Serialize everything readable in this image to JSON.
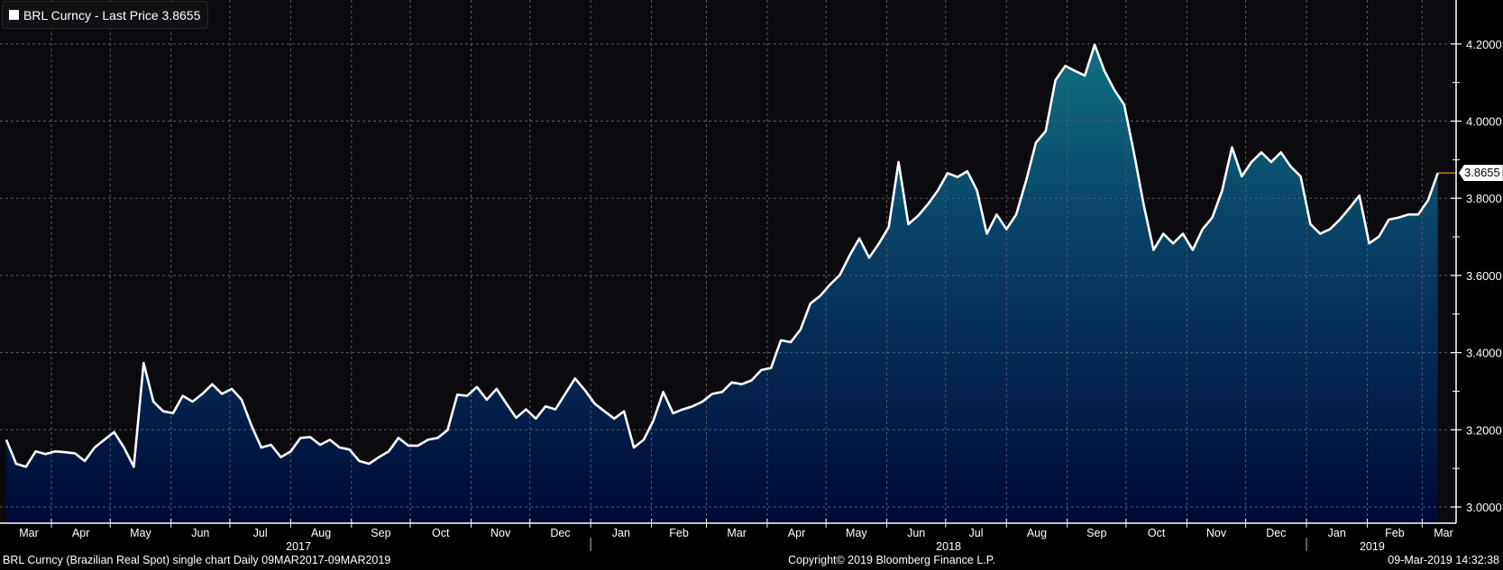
{
  "chart_data": {
    "type": "area",
    "title": "BRL Curncy (Brazilian Real Spot) single chart",
    "frequency": "Daily",
    "range_label": "09MAR2017-09MAR2019",
    "start_date": "2017-03-09",
    "end_date": "2019-03-09",
    "series": [
      {
        "name": "BRL Curncy - Last Price 3.8655",
        "last_value": "3.8655",
        "values": [
          3.174,
          3.112,
          3.104,
          3.144,
          3.137,
          3.144,
          3.142,
          3.139,
          3.119,
          3.154,
          3.174,
          3.194,
          3.154,
          3.104,
          3.373,
          3.273,
          3.248,
          3.243,
          3.288,
          3.273,
          3.293,
          3.318,
          3.293,
          3.306,
          3.278,
          3.211,
          3.154,
          3.161,
          3.129,
          3.144,
          3.179,
          3.181,
          3.161,
          3.174,
          3.154,
          3.149,
          3.119,
          3.112,
          3.129,
          3.144,
          3.179,
          3.159,
          3.159,
          3.174,
          3.179,
          3.199,
          3.291,
          3.288,
          3.311,
          3.278,
          3.306,
          3.268,
          3.231,
          3.253,
          3.229,
          3.261,
          3.253,
          3.293,
          3.333,
          3.303,
          3.268,
          3.248,
          3.229,
          3.248,
          3.154,
          3.174,
          3.224,
          3.298,
          3.243,
          3.253,
          3.261,
          3.273,
          3.293,
          3.298,
          3.323,
          3.318,
          3.328,
          3.355,
          3.36,
          3.432,
          3.427,
          3.46,
          3.527,
          3.547,
          3.576,
          3.601,
          3.651,
          3.696,
          3.646,
          3.683,
          3.725,
          3.894,
          3.733,
          3.755,
          3.785,
          3.82,
          3.865,
          3.855,
          3.87,
          3.82,
          3.708,
          3.758,
          3.72,
          3.758,
          3.845,
          3.944,
          3.974,
          4.106,
          4.143,
          4.13,
          4.118,
          4.198,
          4.13,
          4.081,
          4.043,
          3.919,
          3.783,
          3.666,
          3.708,
          3.683,
          3.708,
          3.666,
          3.72,
          3.75,
          3.82,
          3.932,
          3.857,
          3.894,
          3.919,
          3.894,
          3.919,
          3.882,
          3.857,
          3.733,
          3.708,
          3.72,
          3.745,
          3.775,
          3.807,
          3.683,
          3.701,
          3.745,
          3.75,
          3.758,
          3.758,
          3.795,
          3.8655
        ]
      }
    ],
    "ylim": [
      3.0,
      4.3
    ],
    "y_ticks": [
      "3.0000",
      "3.2000",
      "3.4000",
      "3.6000",
      "3.8000",
      "4.0000",
      "4.2000"
    ],
    "months": [
      {
        "label": "Mar",
        "start": "2017-03-01"
      },
      {
        "label": "Apr",
        "start": "2017-04-01"
      },
      {
        "label": "May",
        "start": "2017-05-01"
      },
      {
        "label": "Jun",
        "start": "2017-06-01"
      },
      {
        "label": "Jul",
        "start": "2017-07-01"
      },
      {
        "label": "Aug",
        "start": "2017-08-01"
      },
      {
        "label": "Sep",
        "start": "2017-09-01"
      },
      {
        "label": "Oct",
        "start": "2017-10-01"
      },
      {
        "label": "Nov",
        "start": "2017-11-01"
      },
      {
        "label": "Dec",
        "start": "2017-12-01"
      },
      {
        "label": "Jan",
        "start": "2018-01-01"
      },
      {
        "label": "Feb",
        "start": "2018-02-01"
      },
      {
        "label": "Mar",
        "start": "2018-03-01"
      },
      {
        "label": "Apr",
        "start": "2018-04-01"
      },
      {
        "label": "May",
        "start": "2018-05-01"
      },
      {
        "label": "Jun",
        "start": "2018-06-01"
      },
      {
        "label": "Jul",
        "start": "2018-07-01"
      },
      {
        "label": "Aug",
        "start": "2018-08-01"
      },
      {
        "label": "Sep",
        "start": "2018-09-01"
      },
      {
        "label": "Oct",
        "start": "2018-10-01"
      },
      {
        "label": "Nov",
        "start": "2018-11-01"
      },
      {
        "label": "Dec",
        "start": "2018-12-01"
      },
      {
        "label": "Jan",
        "start": "2019-01-01"
      },
      {
        "label": "Feb",
        "start": "2019-02-01"
      },
      {
        "label": "Mar",
        "start": "2019-03-01"
      }
    ],
    "years": [
      {
        "label": "2017",
        "start": "2017-03-09",
        "end": "2018-01-01"
      },
      {
        "label": "2018",
        "start": "2018-01-01",
        "end": "2019-01-01"
      },
      {
        "label": "2019",
        "start": "2019-01-01",
        "end": "2019-03-09"
      }
    ],
    "grid": true,
    "legend_position": "top-left",
    "colors": {
      "line": "#ffffff",
      "fill_top": "#0f7282",
      "fill_bottom": "#000a38",
      "last_price_line": "#ff8c00",
      "grid": "#5a5a66",
      "background": "#0b0b0f"
    }
  },
  "legend": {
    "label": "BRL Curncy - Last Price 3.8655"
  },
  "last_price_label": "3.8655",
  "footer": {
    "description": "BRL Curncy (Brazilian Real Spot) single chart  Daily 09MAR2017-09MAR2019",
    "copyright": "Copyright© 2019 Bloomberg Finance L.P.",
    "timestamp": "09-Mar-2019 14:32:38"
  }
}
